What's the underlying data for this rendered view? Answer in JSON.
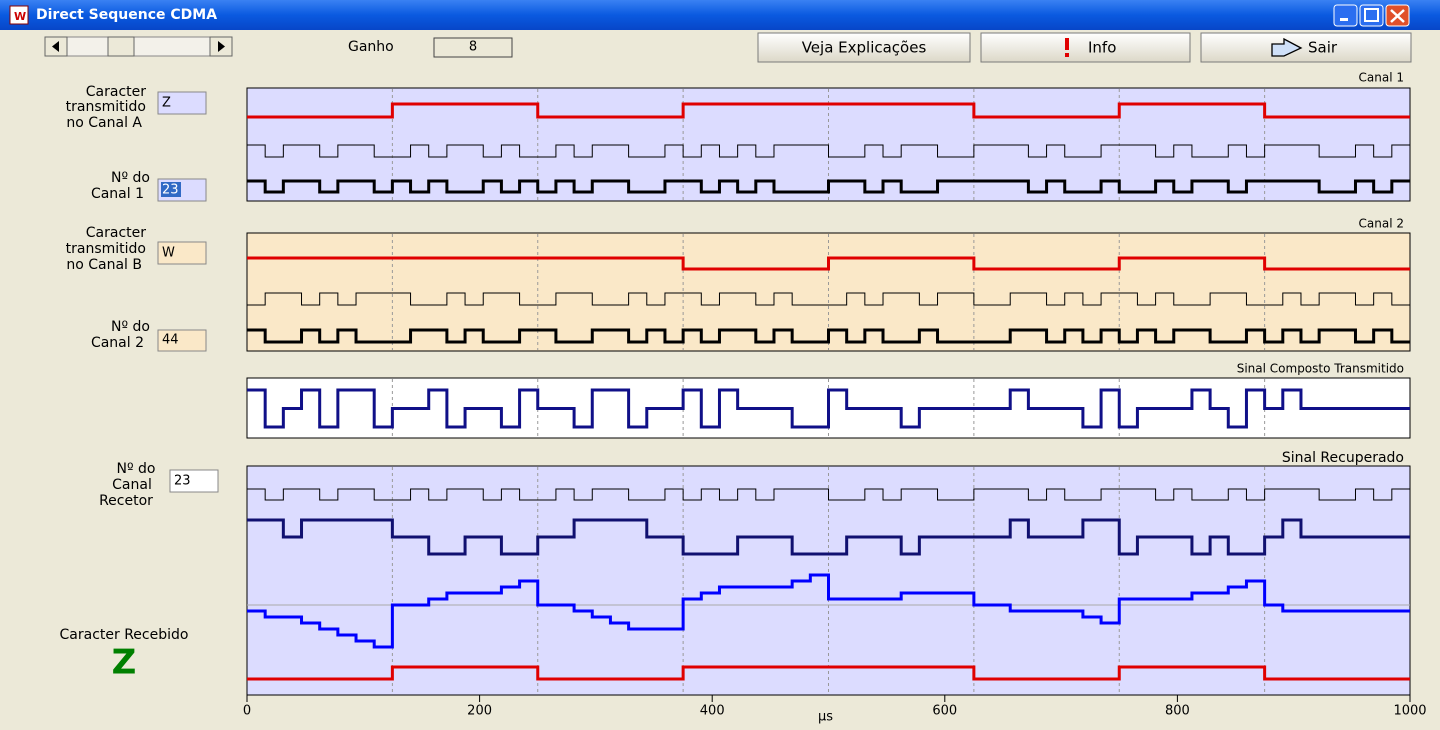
{
  "window": {
    "title": "Direct Sequence CDMA"
  },
  "toolbar": {
    "gain_label": "Ganho",
    "gain": 8,
    "buttons": [
      "Veja Explicações",
      "Info",
      "Sair"
    ]
  },
  "channel_a": {
    "char_label": [
      "Caracter",
      "transmitido",
      "no  Canal A"
    ],
    "char": "Z",
    "code_label": [
      "Nº do",
      "Canal 1"
    ],
    "code": 23
  },
  "channel_b": {
    "char_label": [
      "Caracter",
      "transmitido",
      "no  Canal B"
    ],
    "char": "W",
    "code_label": [
      "Nº do",
      "Canal 2"
    ],
    "code": 44
  },
  "receiver": {
    "code_label": [
      "Nº do",
      "Canal",
      "Recetor"
    ],
    "code": 23,
    "received_label": "Caracter Recebido",
    "received": "Z"
  },
  "panels": {
    "canal1": {
      "title": "Canal 1",
      "bits": [
        0,
        1,
        0,
        1,
        1,
        0,
        1,
        0
      ],
      "code": [
        1,
        0,
        1,
        1,
        0,
        1,
        1,
        0,
        0,
        1,
        0,
        1,
        1,
        0,
        1,
        0,
        0,
        1,
        0,
        1,
        1,
        0,
        0,
        1,
        0,
        1,
        0,
        1,
        0,
        1,
        1,
        1,
        0,
        0,
        1,
        0,
        1,
        1,
        0,
        0,
        1,
        1,
        1,
        0,
        1,
        0,
        0,
        1,
        1,
        1,
        0,
        1,
        0,
        0,
        1,
        0,
        1,
        1,
        1,
        0,
        0,
        1,
        0,
        1
      ],
      "spread": [
        1,
        0,
        1,
        1,
        0,
        1,
        1,
        0,
        1,
        0,
        1,
        0,
        0,
        1,
        0,
        1,
        0,
        1,
        0,
        1,
        1,
        0,
        0,
        1,
        1,
        0,
        1,
        0,
        1,
        0,
        0,
        0,
        1,
        1,
        0,
        1,
        0,
        0,
        1,
        1,
        1,
        1,
        1,
        0,
        1,
        0,
        0,
        1,
        0,
        0,
        1,
        0,
        1,
        1,
        0,
        1,
        1,
        1,
        1,
        0,
        0,
        1,
        0,
        1
      ]
    },
    "canal2": {
      "title": "Canal 2",
      "bits": [
        1,
        1,
        1,
        0,
        1,
        0,
        1,
        0
      ],
      "code": [
        0,
        1,
        1,
        0,
        1,
        0,
        1,
        1,
        1,
        0,
        0,
        1,
        0,
        1,
        1,
        0,
        0,
        1,
        1,
        0,
        0,
        1,
        0,
        1,
        1,
        0,
        1,
        1,
        0,
        1,
        0,
        0,
        0,
        1,
        0,
        1,
        1,
        0,
        1,
        1,
        0,
        0,
        1,
        1,
        0,
        1,
        0,
        1,
        1,
        0,
        1,
        0,
        0,
        1,
        1,
        0,
        0,
        1,
        0,
        1,
        1,
        0,
        1,
        0
      ],
      "spread": [
        1,
        0,
        0,
        1,
        0,
        1,
        0,
        0,
        0,
        1,
        1,
        0,
        1,
        0,
        0,
        1,
        1,
        0,
        0,
        1,
        1,
        0,
        1,
        0,
        1,
        0,
        1,
        1,
        0,
        1,
        0,
        0,
        1,
        0,
        1,
        0,
        0,
        1,
        0,
        0,
        0,
        0,
        1,
        1,
        0,
        1,
        0,
        1,
        0,
        1,
        0,
        1,
        1,
        0,
        0,
        1,
        0,
        1,
        0,
        1,
        1,
        0,
        1,
        0
      ]
    },
    "composite": {
      "title": "Sinal Composto Transmitido",
      "values": [
        2,
        0,
        1,
        2,
        0,
        2,
        2,
        0,
        1,
        1,
        2,
        0,
        1,
        1,
        0,
        2,
        1,
        1,
        0,
        2,
        2,
        0,
        1,
        1,
        2,
        0,
        2,
        1,
        1,
        1,
        0,
        0,
        2,
        1,
        1,
        1,
        0,
        1,
        1,
        1,
        1,
        1,
        2,
        1,
        1,
        1,
        0,
        2,
        0,
        1,
        1,
        1,
        2,
        1,
        0,
        2,
        1,
        2,
        1,
        1,
        1,
        1,
        1,
        1
      ]
    },
    "recovered": {
      "title": "Sinal Recuperado",
      "code": [
        1,
        0,
        1,
        1,
        0,
        1,
        1,
        0,
        0,
        1,
        0,
        1,
        1,
        0,
        1,
        0,
        0,
        1,
        0,
        1,
        1,
        0,
        0,
        1,
        0,
        1,
        0,
        1,
        0,
        1,
        1,
        1,
        0,
        0,
        1,
        0,
        1,
        1,
        0,
        0,
        1,
        1,
        1,
        0,
        1,
        0,
        0,
        1,
        1,
        1,
        0,
        1,
        0,
        0,
        1,
        0,
        1,
        1,
        1,
        0,
        0,
        1,
        0,
        1
      ],
      "despread": [
        2,
        2,
        1,
        2,
        2,
        2,
        2,
        2,
        1,
        1,
        0,
        0,
        1,
        1,
        0,
        0,
        1,
        1,
        2,
        2,
        2,
        2,
        1,
        1,
        0,
        0,
        0,
        1,
        1,
        1,
        0,
        0,
        0,
        1,
        1,
        1,
        0,
        1,
        1,
        1,
        1,
        1,
        2,
        1,
        1,
        1,
        2,
        2,
        0,
        1,
        1,
        1,
        0,
        1,
        0,
        0,
        1,
        2,
        1,
        1,
        1,
        1,
        1,
        1
      ],
      "integrator": [
        -1,
        -2,
        -2,
        -3,
        -4,
        -5,
        -6,
        -7,
        0,
        0,
        1,
        2,
        2,
        2,
        3,
        4,
        0,
        0,
        -1,
        -2,
        -3,
        -4,
        -4,
        -4,
        1,
        2,
        3,
        3,
        3,
        3,
        4,
        5,
        1,
        1,
        1,
        1,
        2,
        2,
        2,
        2,
        0,
        0,
        -1,
        -1,
        -1,
        -1,
        -2,
        -3,
        1,
        1,
        1,
        1,
        2,
        2,
        3,
        4,
        0,
        -1,
        -1,
        -1,
        -1,
        -1,
        -1,
        -1
      ],
      "bits": [
        0,
        1,
        0,
        1,
        1,
        0,
        1,
        0
      ]
    }
  },
  "axis": {
    "xlim": [
      0,
      1000
    ],
    "xticks": [
      0,
      200,
      400,
      600,
      800,
      1000
    ],
    "xlabel": "µs"
  }
}
